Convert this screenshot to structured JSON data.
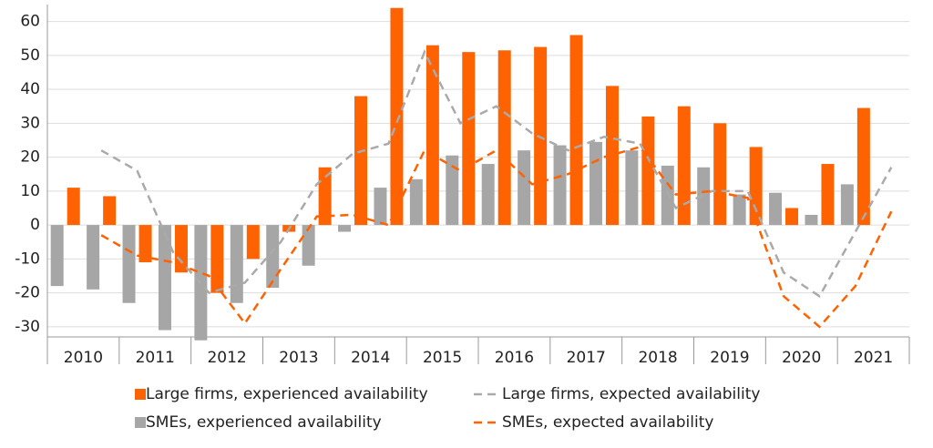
{
  "chart_data": {
    "type": "bar",
    "categories": [
      "2010",
      null,
      "2011",
      null,
      "2012",
      null,
      "2013",
      null,
      "2014",
      null,
      "2015",
      null,
      "2016",
      null,
      "2017",
      null,
      "2018",
      null,
      "2019",
      null,
      "2020",
      null,
      "2021",
      null
    ],
    "series": [
      {
        "name": "Large firms, experienced availability",
        "type": "bar",
        "color": "#ff6200",
        "values": [
          11,
          8.5,
          -11,
          -14,
          -20,
          -10,
          -2,
          17,
          38,
          64,
          53,
          51,
          51.5,
          52.5,
          56,
          41,
          32,
          35,
          30,
          23,
          5,
          18,
          34.5,
          null
        ]
      },
      {
        "name": "Large firms, expected availability",
        "type": "line",
        "color": "#aaaaaa",
        "values": [
          null,
          22,
          16,
          -8,
          -20,
          -17,
          -5,
          12,
          21,
          24,
          51,
          30,
          35,
          27,
          22,
          26,
          24,
          5,
          10,
          10,
          -14,
          -21,
          -2,
          17
        ]
      },
      {
        "name": "SMEs, experienced availability",
        "type": "bar",
        "color": "#a6a6a6",
        "values": [
          -18,
          -19,
          -23,
          -31,
          -34,
          -23,
          -18.5,
          -12,
          -2,
          11,
          13.5,
          20.5,
          18,
          22,
          23.5,
          24.5,
          22,
          17.5,
          17,
          9,
          9.5,
          3,
          12,
          null
        ]
      },
      {
        "name": "SMEs, expected availability",
        "type": "line",
        "color": "#ff6200",
        "values": [
          null,
          -3,
          -9,
          -11,
          -15,
          -29,
          -13,
          2.5,
          3,
          0,
          22,
          16,
          22,
          12,
          15,
          20,
          23,
          9,
          10,
          8,
          -21,
          -30,
          -18,
          4
        ]
      }
    ],
    "ylim": [
      -33,
      65
    ],
    "yticks": [
      -30,
      -20,
      -10,
      0,
      10,
      20,
      30,
      40,
      50,
      60
    ],
    "grid": true
  }
}
